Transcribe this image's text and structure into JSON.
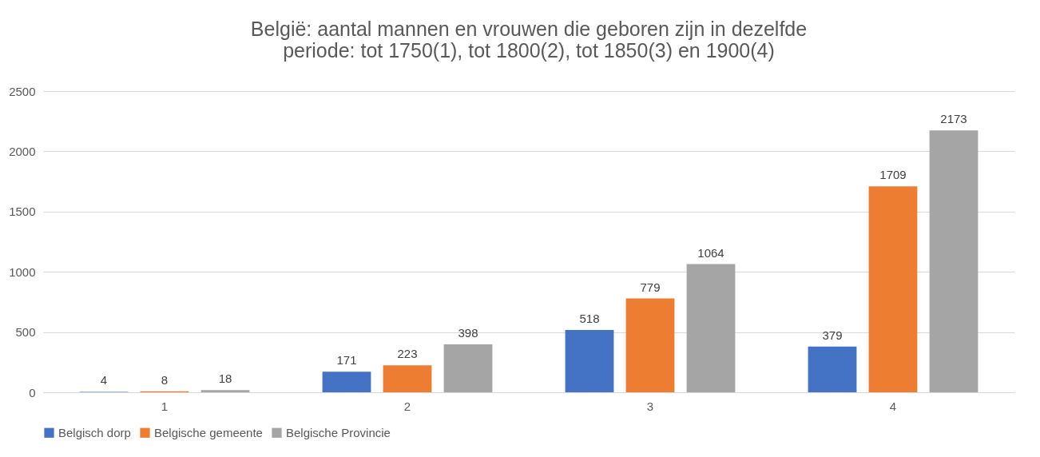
{
  "chart_data": {
    "type": "bar",
    "title": "België: aantal mannen en vrouwen die geboren zijn in dezelfde periode: tot 1750(1), tot 1800(2), tot 1850(3) en 1900(4)",
    "categories": [
      "1",
      "2",
      "3",
      "4"
    ],
    "series": [
      {
        "name": "Belgisch dorp",
        "color": "#4472c4",
        "values": [
          4,
          171,
          518,
          379
        ]
      },
      {
        "name": "Belgische gemeente",
        "color": "#ed7d31",
        "values": [
          8,
          223,
          779,
          1709
        ]
      },
      {
        "name": "Belgische Provincie",
        "color": "#a5a5a5",
        "values": [
          18,
          398,
          1064,
          2173
        ]
      }
    ],
    "ylim": [
      0,
      2500
    ],
    "yticks": [
      0,
      500,
      1000,
      1500,
      2000,
      2500
    ],
    "grid": "y",
    "legend": "bottom",
    "data_labels": true
  }
}
